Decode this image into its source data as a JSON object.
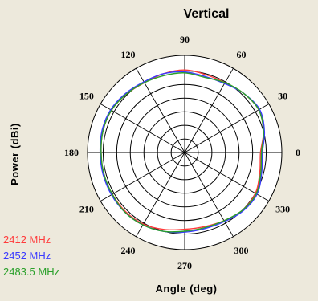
{
  "chart_data": {
    "type": "line",
    "subtype": "polar",
    "title": "Vertical",
    "xlabel": "Angle (deg)",
    "ylabel": "Power (dBi)",
    "angle_ticks": [
      "0",
      "30",
      "60",
      "90",
      "120",
      "150",
      "180",
      "210",
      "240",
      "270",
      "300",
      "330"
    ],
    "grid": true,
    "legend_position": "bottom-left",
    "angles": [
      0,
      15,
      30,
      45,
      60,
      75,
      90,
      105,
      120,
      135,
      150,
      165,
      180,
      195,
      210,
      225,
      240,
      255,
      270,
      285,
      300,
      315,
      330,
      345
    ],
    "radius_scale": "relative (0 = center, 1 = outer ring)",
    "series": [
      {
        "name": "2412 MHz",
        "color": "#ff3b3b",
        "values": [
          0.78,
          0.84,
          0.88,
          0.86,
          0.83,
          0.83,
          0.85,
          0.84,
          0.83,
          0.85,
          0.87,
          0.87,
          0.86,
          0.86,
          0.86,
          0.86,
          0.85,
          0.82,
          0.79,
          0.79,
          0.81,
          0.84,
          0.84,
          0.8
        ]
      },
      {
        "name": "2452 MHz",
        "color": "#3a3aff",
        "values": [
          0.8,
          0.85,
          0.89,
          0.86,
          0.82,
          0.81,
          0.83,
          0.84,
          0.84,
          0.86,
          0.88,
          0.88,
          0.87,
          0.87,
          0.87,
          0.87,
          0.86,
          0.84,
          0.82,
          0.81,
          0.82,
          0.85,
          0.86,
          0.82
        ]
      },
      {
        "name": "2483.5 MHz",
        "color": "#2aa02a",
        "values": [
          0.79,
          0.84,
          0.88,
          0.86,
          0.83,
          0.8,
          0.82,
          0.82,
          0.83,
          0.85,
          0.87,
          0.87,
          0.86,
          0.86,
          0.86,
          0.87,
          0.86,
          0.84,
          0.81,
          0.8,
          0.81,
          0.84,
          0.85,
          0.81
        ]
      }
    ]
  }
}
